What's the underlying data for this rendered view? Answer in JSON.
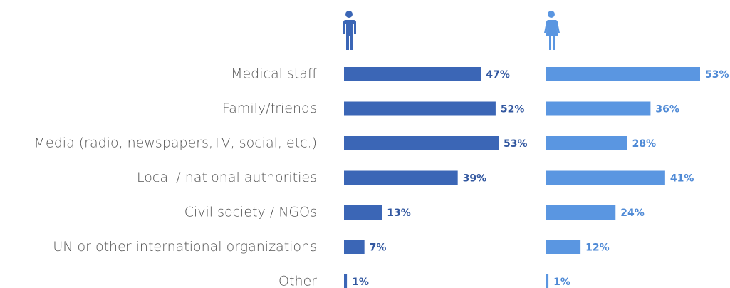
{
  "chart_data": {
    "type": "bar",
    "orientation": "horizontal",
    "categories": [
      "Medical staff",
      "Family/friends",
      "Media (radio, newspapers,TV, social, etc.)",
      "Local / national authorities",
      "Civil society / NGOs",
      "UN or other international organizations",
      "Other"
    ],
    "series": [
      {
        "color": "#3b66b6",
        "values": [
          47,
          52,
          53,
          39,
          13,
          7,
          1
        ],
        "value_labels": [
          "47%",
          "52%",
          "53%",
          "39%",
          "13%",
          "7%",
          "1%"
        ]
      },
      {
        "color": "#5a96e1",
        "values": [
          53,
          36,
          28,
          41,
          24,
          12,
          1
        ],
        "value_labels": [
          "53%",
          "36%",
          "28%",
          "41%",
          "24%",
          "12%",
          "1%"
        ]
      }
    ]
  }
}
